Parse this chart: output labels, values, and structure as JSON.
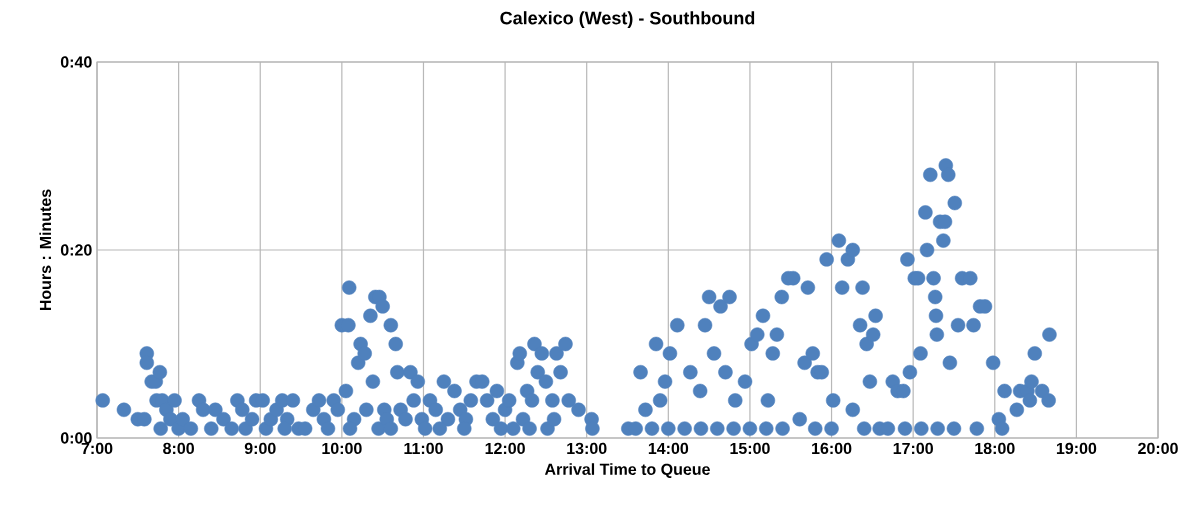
{
  "chart_data": {
    "type": "scatter",
    "title": "Calexico (West) - Southbound",
    "xlabel": "Arrival Time to Queue",
    "ylabel": "Hours : Minutes",
    "color": "#4f81bd",
    "marker": "circle",
    "grid": true,
    "xlim": [
      7,
      20
    ],
    "ylim": [
      0,
      40
    ],
    "xticks": [
      {
        "value": 7,
        "label": "7:00"
      },
      {
        "value": 8,
        "label": "8:00"
      },
      {
        "value": 9,
        "label": "9:00"
      },
      {
        "value": 10,
        "label": "10:00"
      },
      {
        "value": 11,
        "label": "11:00"
      },
      {
        "value": 12,
        "label": "12:00"
      },
      {
        "value": 13,
        "label": "13:00"
      },
      {
        "value": 14,
        "label": "14:00"
      },
      {
        "value": 15,
        "label": "15:00"
      },
      {
        "value": 16,
        "label": "16:00"
      },
      {
        "value": 17,
        "label": "17:00"
      },
      {
        "value": 18,
        "label": "18:00"
      },
      {
        "value": 19,
        "label": "19:00"
      },
      {
        "value": 20,
        "label": "20:00"
      }
    ],
    "yticks": [
      {
        "value": 0,
        "label": "0:00"
      },
      {
        "value": 20,
        "label": "0:20"
      },
      {
        "value": 40,
        "label": "0:40"
      }
    ],
    "x": [
      7.07,
      7.33,
      7.5,
      7.58,
      7.61,
      7.61,
      7.67,
      7.72,
      7.77,
      7.73,
      7.8,
      7.78,
      7.85,
      7.9,
      7.95,
      8.0,
      8.05,
      8.15,
      8.25,
      8.3,
      8.4,
      8.45,
      8.55,
      8.65,
      8.72,
      8.78,
      8.82,
      8.9,
      8.95,
      9.03,
      9.07,
      9.13,
      9.2,
      9.27,
      9.33,
      9.4,
      9.47,
      9.55,
      9.65,
      9.72,
      9.78,
      9.83,
      9.9,
      9.95,
      10.0,
      10.05,
      10.08,
      10.09,
      10.15,
      10.2,
      10.23,
      10.28,
      10.3,
      10.35,
      10.38,
      10.41,
      10.46,
      10.5,
      10.45,
      10.52,
      10.55,
      10.6,
      10.66,
      10.68,
      10.72,
      10.78,
      10.84,
      10.88,
      10.93,
      10.98,
      11.02,
      11.08,
      11.15,
      11.25,
      11.3,
      11.38,
      11.45,
      11.52,
      11.58,
      11.65,
      11.72,
      11.78,
      11.85,
      11.9,
      11.95,
      12.0,
      12.05,
      12.1,
      12.15,
      12.18,
      12.22,
      12.27,
      12.33,
      12.36,
      12.4,
      12.45,
      12.5,
      12.52,
      12.58,
      12.63,
      12.68,
      12.74,
      12.78,
      12.9,
      13.06,
      13.07,
      9.3,
      10.1,
      10.6,
      11.2,
      11.5,
      12.3,
      12.6,
      13.51,
      13.66,
      13.72,
      13.85,
      13.9,
      13.96,
      14.02,
      14.11,
      14.27,
      14.39,
      14.45,
      14.5,
      14.56,
      14.64,
      14.7,
      14.75,
      14.82,
      14.94,
      15.02,
      15.09,
      15.16,
      15.22,
      15.28,
      15.33,
      15.39,
      15.47,
      15.53,
      15.61,
      15.67,
      15.71,
      15.77,
      15.83,
      15.88,
      15.94,
      16.02,
      16.09,
      16.13,
      16.2,
      16.26,
      16.26,
      16.35,
      16.38,
      16.43,
      16.47,
      16.51,
      16.54,
      16.59,
      16.69,
      16.75,
      16.81,
      16.88,
      16.93,
      16.96,
      17.02,
      17.06,
      17.09,
      17.15,
      17.17,
      17.21,
      17.25,
      17.27,
      17.28,
      17.29,
      17.33,
      17.37,
      17.39,
      17.4,
      17.43,
      17.45,
      17.51,
      17.55,
      17.6,
      17.7,
      17.74,
      17.78,
      17.82,
      17.88,
      17.98,
      18.05,
      18.09,
      18.12,
      18.27,
      18.31,
      18.4,
      18.43,
      18.45,
      18.49,
      18.58,
      18.66,
      18.67,
      13.6,
      13.8,
      14.0,
      14.2,
      14.4,
      14.6,
      14.8,
      15.0,
      15.2,
      15.4,
      15.8,
      16.0,
      16.4,
      16.9,
      17.1,
      17.3,
      17.5
    ],
    "values": [
      4,
      3,
      2,
      2,
      9,
      8,
      6,
      6,
      7,
      4,
      4,
      1,
      3,
      2,
      4,
      1,
      2,
      1,
      4,
      3,
      1,
      3,
      2,
      1,
      4,
      3,
      1,
      2,
      4,
      4,
      1,
      2,
      3,
      4,
      2,
      4,
      1,
      1,
      3,
      4,
      2,
      1,
      4,
      3,
      12,
      5,
      12,
      16,
      2,
      8,
      10,
      9,
      3,
      13,
      6,
      15,
      15,
      14,
      1,
      3,
      2,
      12,
      10,
      7,
      3,
      2,
      7,
      4,
      6,
      2,
      1,
      4,
      3,
      6,
      2,
      5,
      3,
      2,
      4,
      6,
      6,
      4,
      2,
      5,
      1,
      3,
      4,
      1,
      8,
      9,
      2,
      5,
      4,
      10,
      7,
      9,
      6,
      1,
      4,
      9,
      7,
      10,
      4,
      3,
      2,
      1,
      1,
      1,
      1,
      1,
      1,
      1,
      2,
      1,
      7,
      3,
      10,
      4,
      6,
      9,
      12,
      7,
      5,
      12,
      15,
      9,
      14,
      7,
      15,
      4,
      6,
      10,
      11,
      13,
      4,
      9,
      11,
      15,
      17,
      17,
      2,
      8,
      16,
      9,
      7,
      7,
      19,
      4,
      21,
      16,
      19,
      20,
      3,
      12,
      16,
      10,
      6,
      11,
      13,
      1,
      1,
      6,
      5,
      5,
      19,
      7,
      17,
      17,
      9,
      24,
      20,
      28,
      17,
      15,
      13,
      11,
      23,
      21,
      23,
      29,
      28,
      8,
      25,
      12,
      17,
      17,
      12,
      1,
      14,
      14,
      8,
      2,
      1,
      5,
      3,
      5,
      5,
      4,
      6,
      9,
      5,
      4,
      11,
      1,
      1,
      1,
      1,
      1,
      1,
      1,
      1,
      1,
      1,
      1,
      1,
      1,
      1,
      1,
      1,
      1
    ]
  }
}
